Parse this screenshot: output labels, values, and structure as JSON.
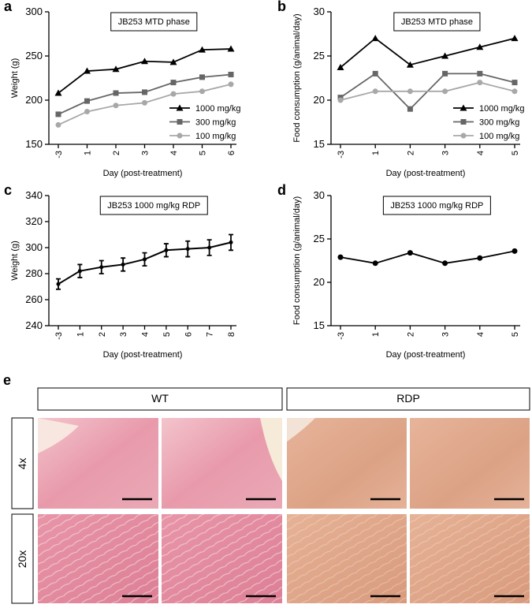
{
  "chart_data": [
    {
      "type": "line",
      "panel": "a",
      "title": "JB253  MTD phase",
      "x_label": "Day (post-treatment)",
      "y_label": "Weight (g)",
      "categories": [
        "-3",
        "1",
        "2",
        "3",
        "4",
        "5",
        "6"
      ],
      "series": [
        {
          "name": "1000 mg/kg",
          "color": "#000000",
          "marker": "triangle",
          "values": [
            208,
            233,
            235,
            244,
            243,
            257,
            258
          ]
        },
        {
          "name": "300 mg/kg",
          "color": "#666666",
          "marker": "square",
          "values": [
            184,
            199,
            208,
            209,
            220,
            226,
            229
          ]
        },
        {
          "name": "100 mg/kg",
          "color": "#a8a8a8",
          "marker": "circle",
          "values": [
            172,
            187,
            194,
            197,
            207,
            210,
            218
          ]
        }
      ],
      "ylim": [
        150,
        300
      ],
      "yticks": [
        150,
        200,
        250,
        300
      ],
      "legend": "lower right"
    },
    {
      "type": "line",
      "panel": "b",
      "title": "JB253  MTD phase",
      "x_label": "Day (post-treatment)",
      "y_label": "Food consumption (g/animal/day)",
      "categories": [
        "-3",
        "1",
        "2",
        "3",
        "4",
        "5"
      ],
      "series": [
        {
          "name": "1000 mg/kg",
          "color": "#000000",
          "marker": "triangle",
          "values": [
            23.7,
            27,
            24,
            25,
            26,
            27
          ]
        },
        {
          "name": "300 mg/kg",
          "color": "#666666",
          "marker": "square",
          "values": [
            20.3,
            23,
            19,
            23,
            23,
            22
          ]
        },
        {
          "name": "100 mg/kg",
          "color": "#a8a8a8",
          "marker": "circle",
          "values": [
            20,
            21,
            21,
            21,
            22,
            21
          ]
        }
      ],
      "ylim": [
        15,
        30
      ],
      "yticks": [
        15,
        20,
        25,
        30
      ],
      "legend": "lower right"
    },
    {
      "type": "errorline",
      "panel": "c",
      "title": "JB253 1000 mg/kg RDP",
      "x_label": "Day (post-treatment)",
      "y_label": "Weight (g)",
      "categories": [
        "-3",
        "1",
        "2",
        "3",
        "4",
        "5",
        "6",
        "7",
        "8"
      ],
      "values": [
        272,
        282,
        285,
        287,
        291,
        298,
        299,
        300,
        304
      ],
      "errors": [
        4,
        5,
        5,
        5,
        5,
        5,
        6,
        6,
        6
      ],
      "color": "#000000",
      "ylim": [
        240,
        340
      ],
      "yticks": [
        240,
        260,
        280,
        300,
        320,
        340
      ]
    },
    {
      "type": "line",
      "panel": "d",
      "title": "JB253 1000 mg/kg RDP",
      "x_label": "Day (post-treatment)",
      "y_label": "Food consumption (g/animal/day)",
      "categories": [
        "-3",
        "1",
        "2",
        "3",
        "4",
        "5"
      ],
      "series": [
        {
          "color": "#000000",
          "marker": "circle",
          "values": [
            22.9,
            22.2,
            23.4,
            22.2,
            22.8,
            23.6
          ]
        }
      ],
      "ylim": [
        15,
        30
      ],
      "yticks": [
        15,
        20,
        25,
        30
      ]
    }
  ],
  "panel_e": {
    "label": "e",
    "columns": [
      "WT",
      "RDP"
    ],
    "rows": [
      "4x",
      "20x"
    ]
  }
}
